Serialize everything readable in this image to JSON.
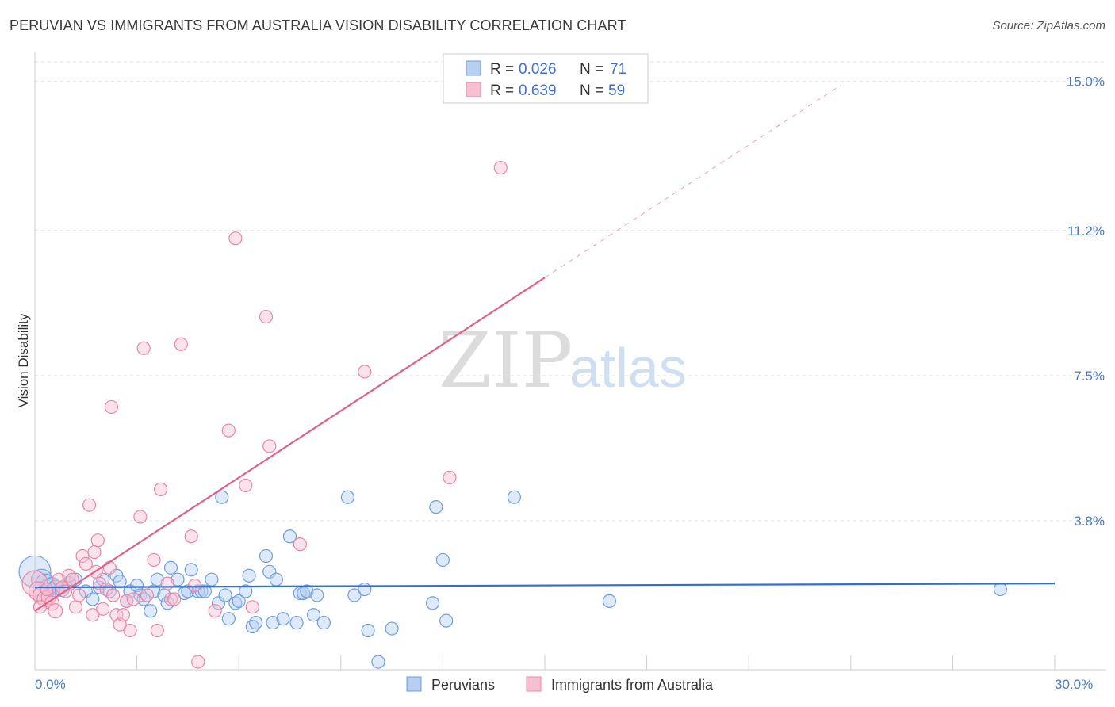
{
  "title": "PERUVIAN VS IMMIGRANTS FROM AUSTRALIA VISION DISABILITY CORRELATION CHART",
  "source": "Source: ZipAtlas.com",
  "colors": {
    "blue": "#6f9ee0",
    "blue_fill": "#b6cff2",
    "blue_line": "#2f6fd0",
    "pink": "#e986a6",
    "pink_fill": "#f7c0d2",
    "pink_line": "#e0608a",
    "tick_text": "#4a78c8"
  },
  "chart_data": {
    "type": "scatter",
    "title": "PERUVIAN VS IMMIGRANTS FROM AUSTRALIA VISION DISABILITY CORRELATION CHART",
    "xlabel": "",
    "ylabel": "Vision Disability",
    "xlim": [
      0,
      30
    ],
    "ylim": [
      0,
      15.5
    ],
    "x_tick_labels": [
      "0.0%",
      "30.0%"
    ],
    "y_ticks": [
      3.8,
      7.5,
      11.2,
      15.0
    ],
    "y_tick_labels": [
      "3.8%",
      "7.5%",
      "11.2%",
      "15.0%"
    ],
    "grid": true,
    "legend": [
      {
        "name": "Peruvians",
        "r_label": "R =",
        "r_value": "0.026",
        "n_label": "N =",
        "n_value": "71"
      },
      {
        "name": "Immigrants from Australia",
        "r_label": "R =",
        "r_value": "0.639",
        "n_label": "N =",
        "n_value": "59"
      }
    ],
    "watermark": {
      "zip": "ZIP",
      "atlas": "atlas"
    },
    "series": [
      {
        "name": "Peruvians",
        "color": "#6f9ee0",
        "trend": {
          "x": [
            0,
            30
          ],
          "y": [
            2.1,
            2.2
          ],
          "dashed_to": null
        },
        "points": [
          [
            0.0,
            2.5,
            20
          ],
          [
            0.2,
            2.3,
            13
          ],
          [
            0.3,
            2.2,
            12
          ],
          [
            0.4,
            2.1,
            11
          ],
          [
            0.5,
            2.15,
            10
          ],
          [
            0.6,
            2.1,
            9
          ],
          [
            0.8,
            2.05,
            9
          ],
          [
            1.0,
            2.2,
            9
          ],
          [
            1.2,
            2.3,
            8
          ],
          [
            1.5,
            2.0,
            8
          ],
          [
            1.7,
            1.8,
            8
          ],
          [
            1.9,
            2.1,
            8
          ],
          [
            2.0,
            2.3,
            8
          ],
          [
            2.2,
            2.0,
            8
          ],
          [
            2.4,
            2.4,
            8
          ],
          [
            2.5,
            2.25,
            8
          ],
          [
            2.7,
            1.75,
            8
          ],
          [
            2.8,
            2.0,
            8
          ],
          [
            3.0,
            2.15,
            8
          ],
          [
            3.1,
            1.9,
            8
          ],
          [
            3.2,
            1.8,
            8
          ],
          [
            3.4,
            1.5,
            8
          ],
          [
            3.5,
            2.0,
            8
          ],
          [
            3.6,
            2.3,
            8
          ],
          [
            3.8,
            1.9,
            8
          ],
          [
            3.9,
            1.7,
            8
          ],
          [
            4.0,
            2.6,
            8
          ],
          [
            4.2,
            2.3,
            8
          ],
          [
            4.4,
            1.95,
            8
          ],
          [
            4.5,
            2.0,
            8
          ],
          [
            4.6,
            2.55,
            8
          ],
          [
            4.8,
            2.0,
            8
          ],
          [
            4.9,
            2.0,
            8
          ],
          [
            5.0,
            2.0,
            8
          ],
          [
            5.2,
            2.3,
            8
          ],
          [
            5.4,
            1.7,
            8
          ],
          [
            5.5,
            4.4,
            8
          ],
          [
            5.6,
            1.9,
            8
          ],
          [
            5.7,
            1.3,
            8
          ],
          [
            5.9,
            1.7,
            8
          ],
          [
            6.0,
            1.75,
            8
          ],
          [
            6.2,
            2.0,
            8
          ],
          [
            6.3,
            2.4,
            8
          ],
          [
            6.4,
            1.1,
            8
          ],
          [
            6.5,
            1.2,
            8
          ],
          [
            6.8,
            2.9,
            8
          ],
          [
            6.9,
            2.5,
            8
          ],
          [
            7.0,
            1.2,
            8
          ],
          [
            7.1,
            2.3,
            8
          ],
          [
            7.3,
            1.3,
            8
          ],
          [
            7.5,
            3.4,
            8
          ],
          [
            7.7,
            1.2,
            8
          ],
          [
            7.8,
            1.95,
            8
          ],
          [
            7.9,
            1.95,
            8
          ],
          [
            8.0,
            2.0,
            8
          ],
          [
            8.2,
            1.4,
            8
          ],
          [
            8.3,
            1.9,
            8
          ],
          [
            8.5,
            1.2,
            8
          ],
          [
            9.2,
            4.4,
            8
          ],
          [
            9.4,
            1.9,
            8
          ],
          [
            9.7,
            2.05,
            8
          ],
          [
            9.8,
            1.0,
            8
          ],
          [
            10.1,
            0.2,
            8
          ],
          [
            10.5,
            1.05,
            8
          ],
          [
            11.7,
            1.7,
            8
          ],
          [
            11.8,
            4.15,
            8
          ],
          [
            12.0,
            2.8,
            8
          ],
          [
            12.1,
            1.25,
            8
          ],
          [
            14.1,
            4.4,
            8
          ],
          [
            16.9,
            1.75,
            8
          ],
          [
            28.4,
            2.05,
            8
          ]
        ]
      },
      {
        "name": "Immigrants from Australia",
        "color": "#e986a6",
        "trend": {
          "x": [
            0,
            15
          ],
          "y": [
            1.5,
            10.0
          ],
          "dashed_to": {
            "x": 23.7,
            "y": 14.9
          }
        },
        "points": [
          [
            0.0,
            2.2,
            16
          ],
          [
            0.1,
            2.0,
            12
          ],
          [
            0.2,
            1.9,
            11
          ],
          [
            0.3,
            1.8,
            10
          ],
          [
            0.4,
            1.85,
            9
          ],
          [
            0.5,
            1.7,
            9
          ],
          [
            0.6,
            1.5,
            9
          ],
          [
            0.7,
            2.3,
            8
          ],
          [
            0.8,
            2.1,
            8
          ],
          [
            0.9,
            2.0,
            8
          ],
          [
            1.0,
            2.4,
            8
          ],
          [
            1.1,
            2.3,
            8
          ],
          [
            1.2,
            1.6,
            8
          ],
          [
            1.3,
            1.9,
            8
          ],
          [
            1.4,
            2.9,
            8
          ],
          [
            1.5,
            2.7,
            8
          ],
          [
            1.6,
            4.2,
            8
          ],
          [
            1.7,
            1.4,
            8
          ],
          [
            1.75,
            3.0,
            8
          ],
          [
            1.8,
            2.5,
            8
          ],
          [
            1.85,
            3.3,
            8
          ],
          [
            1.9,
            2.2,
            8
          ],
          [
            2.0,
            1.55,
            8
          ],
          [
            2.1,
            2.05,
            8
          ],
          [
            2.2,
            2.6,
            8
          ],
          [
            2.25,
            6.7,
            8
          ],
          [
            2.3,
            1.9,
            8
          ],
          [
            2.4,
            1.4,
            8
          ],
          [
            2.5,
            1.15,
            8
          ],
          [
            2.6,
            1.4,
            8
          ],
          [
            2.7,
            1.75,
            8
          ],
          [
            2.8,
            1.0,
            8
          ],
          [
            2.9,
            1.8,
            8
          ],
          [
            3.1,
            3.9,
            8
          ],
          [
            3.2,
            8.2,
            8
          ],
          [
            3.3,
            1.9,
            8
          ],
          [
            3.5,
            2.8,
            8
          ],
          [
            3.6,
            1.0,
            8
          ],
          [
            3.7,
            4.6,
            8
          ],
          [
            3.9,
            2.2,
            8
          ],
          [
            4.0,
            1.8,
            8
          ],
          [
            4.1,
            1.8,
            8
          ],
          [
            4.3,
            8.3,
            8
          ],
          [
            4.6,
            3.4,
            8
          ],
          [
            4.7,
            2.15,
            8
          ],
          [
            4.8,
            0.2,
            8
          ],
          [
            5.3,
            1.5,
            8
          ],
          [
            5.7,
            6.1,
            8
          ],
          [
            5.9,
            11.0,
            8
          ],
          [
            6.2,
            4.7,
            8
          ],
          [
            6.4,
            1.6,
            8
          ],
          [
            6.8,
            9.0,
            8
          ],
          [
            6.9,
            5.7,
            8
          ],
          [
            7.8,
            3.2,
            8
          ],
          [
            9.7,
            7.6,
            8
          ],
          [
            12.2,
            4.9,
            8
          ],
          [
            13.7,
            12.8,
            8
          ],
          [
            0.15,
            1.6,
            8
          ],
          [
            0.35,
            2.05,
            8
          ]
        ]
      }
    ]
  }
}
